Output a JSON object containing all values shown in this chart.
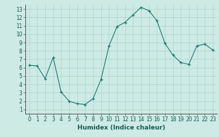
{
  "x": [
    0,
    1,
    2,
    3,
    4,
    5,
    6,
    7,
    8,
    9,
    10,
    11,
    12,
    13,
    14,
    15,
    16,
    17,
    18,
    19,
    20,
    21,
    22,
    23
  ],
  "y": [
    6.3,
    6.2,
    4.7,
    7.2,
    3.1,
    2.0,
    1.7,
    1.6,
    2.3,
    4.6,
    8.6,
    10.9,
    11.4,
    12.3,
    13.2,
    12.8,
    11.6,
    8.9,
    7.5,
    6.6,
    6.4,
    8.6,
    8.8,
    8.1
  ],
  "xlabel": "Humidex (Indice chaleur)",
  "line_color": "#1a7a6e",
  "marker": "+",
  "bg_color": "#cdeae5",
  "grid_color": "#aed4ce",
  "xlim": [
    -0.5,
    23.5
  ],
  "ylim": [
    0.5,
    13.5
  ],
  "xticks": [
    0,
    1,
    2,
    3,
    4,
    5,
    6,
    7,
    8,
    9,
    10,
    11,
    12,
    13,
    14,
    15,
    16,
    17,
    18,
    19,
    20,
    21,
    22,
    23
  ],
  "yticks": [
    1,
    2,
    3,
    4,
    5,
    6,
    7,
    8,
    9,
    10,
    11,
    12,
    13
  ],
  "tick_fontsize": 5.5,
  "xlabel_fontsize": 6.5
}
